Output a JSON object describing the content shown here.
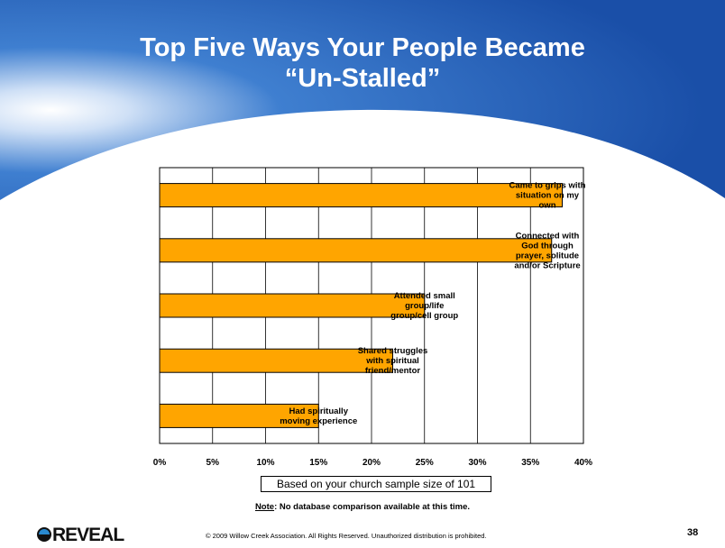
{
  "slide": {
    "title_line1": "Top Five Ways Your People Became",
    "title_line2": "“Un-Stalled”",
    "sample_note": "Based on your church sample size of 101",
    "note_label": "Note",
    "note_text": ": No database comparison available at this time.",
    "copyright": "© 2009 Willow Creek Association.  All Rights Reserved.  Unauthorized distribution is prohibited.",
    "page_number": "38",
    "logo_text": "REVEAL",
    "colors": {
      "header_blue": "#1f5fb7",
      "bar_fill": "#ffa500",
      "bar_stroke": "#000000"
    }
  },
  "chart_data": {
    "type": "bar",
    "orientation": "horizontal",
    "categories": [
      [
        "Came to grips with",
        "situation on my",
        "own"
      ],
      [
        "Connected with",
        "God through",
        "prayer, solitude",
        "and/or Scripture"
      ],
      [
        "Attended small",
        "group/life",
        "group/cell group"
      ],
      [
        "Shared struggles",
        "with spiritual",
        "friend/mentor"
      ],
      [
        "Had spiritually",
        "moving experience"
      ]
    ],
    "values": [
      38,
      37,
      25,
      22,
      15
    ],
    "xlim": [
      0,
      40
    ],
    "xticks": [
      "0%",
      "5%",
      "10%",
      "15%",
      "20%",
      "25%",
      "30%",
      "35%",
      "40%"
    ],
    "grid": true,
    "legend": "none"
  }
}
